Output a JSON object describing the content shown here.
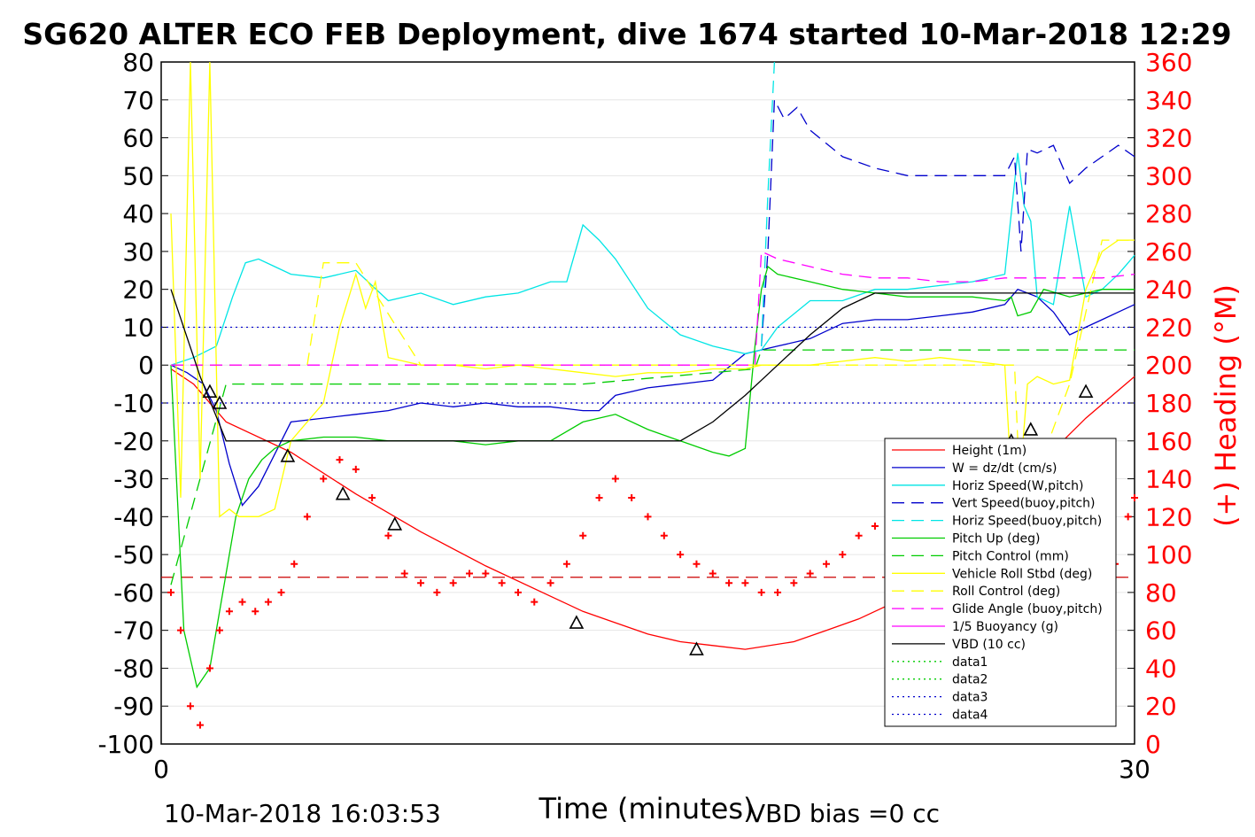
{
  "chart_data": {
    "type": "line",
    "title": "SG620 ALTER ECO FEB Deployment, dive 1674 started 10-Mar-2018 12:29",
    "xlabel": "Time (minutes)",
    "ylabel_right": "(+) Heading (°M)",
    "xlim": [
      0,
      30
    ],
    "ylim_left": [
      -100,
      80
    ],
    "ylim_right": [
      0,
      360
    ],
    "x_ticks": [
      "0",
      "30"
    ],
    "y_ticks_left": [
      "80",
      "70",
      "60",
      "50",
      "40",
      "30",
      "20",
      "10",
      "0",
      "-10",
      "-20",
      "-30",
      "-40",
      "-50",
      "-60",
      "-70",
      "-80",
      "-90",
      "-100"
    ],
    "y_ticks_right": [
      "360",
      "340",
      "320",
      "300",
      "280",
      "260",
      "240",
      "220",
      "200",
      "180",
      "160",
      "140",
      "120",
      "100",
      "80",
      "60",
      "40",
      "20",
      "0"
    ],
    "grid": true,
    "legend_position": "lower-right",
    "footer_left": "10-Mar-2018 16:03:53",
    "footer_right": "VBD bias =0 cc",
    "colors": {
      "height": "#ff0000",
      "w": "#0000cc",
      "horiz_w": "#00e5e5",
      "vert_buoy": "#0000cc",
      "horiz_buoy": "#00e5e5",
      "pitch": "#00cc00",
      "pitch_ctrl": "#00cc00",
      "roll": "#ffff00",
      "roll_ctrl": "#ffff00",
      "glide": "#ff00ff",
      "buoyancy": "#ff00ff",
      "vbd": "#000000",
      "heading": "#ff0000",
      "marker": "#000000"
    },
    "legend": [
      {
        "name": "Height (1m)",
        "color": "#ff0000",
        "dash": "solid"
      },
      {
        "name": "W = dz/dt (cm/s)",
        "color": "#0000cc",
        "dash": "solid"
      },
      {
        "name": "Horiz Speed(W,pitch)",
        "color": "#00e5e5",
        "dash": "solid"
      },
      {
        "name": "Vert Speed(buoy,pitch)",
        "color": "#0000cc",
        "dash": "dashed"
      },
      {
        "name": "Horiz Speed(buoy,pitch)",
        "color": "#00e5e5",
        "dash": "dashed"
      },
      {
        "name": "Pitch Up (deg)",
        "color": "#00cc00",
        "dash": "solid"
      },
      {
        "name": "Pitch Control (mm)",
        "color": "#00cc00",
        "dash": "dashed"
      },
      {
        "name": "Vehicle Roll Stbd (deg)",
        "color": "#ffff00",
        "dash": "solid"
      },
      {
        "name": "Roll Control (deg)",
        "color": "#ffff00",
        "dash": "dashed"
      },
      {
        "name": "Glide Angle (buoy,pitch)",
        "color": "#ff00ff",
        "dash": "dashed"
      },
      {
        "name": "1/5 Buoyancy (g)",
        "color": "#ff00ff",
        "dash": "solid"
      },
      {
        "name": "VBD (10 cc)",
        "color": "#000000",
        "dash": "solid"
      },
      {
        "name": "data1",
        "color": "#00cc00",
        "dash": "dotted"
      },
      {
        "name": "data2",
        "color": "#00cc00",
        "dash": "dotted"
      },
      {
        "name": "data3",
        "color": "#0000cc",
        "dash": "dotted"
      },
      {
        "name": "data4",
        "color": "#0000cc",
        "dash": "dotted"
      }
    ],
    "series": [
      {
        "key": "height",
        "axis": "left",
        "dash": "solid",
        "x": [
          0.3,
          1,
          2,
          4,
          6,
          8,
          10,
          12,
          13,
          14,
          15,
          16,
          17,
          18,
          19.5,
          20.5,
          21.5,
          22.5,
          23.5,
          24.5,
          25.5,
          26.5,
          27.2,
          28.5,
          30.0
        ],
        "y": [
          -1,
          -5,
          -15,
          -23,
          -34,
          -44,
          -53,
          -61,
          -65,
          -68,
          -71,
          -73,
          -74,
          -75,
          -73,
          -70,
          -67,
          -63,
          -57,
          -50,
          -43,
          -34,
          -25,
          -14,
          -3
        ]
      },
      {
        "key": "w",
        "axis": "left",
        "dash": "solid",
        "x": [
          0.3,
          0.8,
          1.3,
          1.7,
          2.1,
          2.5,
          3,
          4,
          5,
          6,
          7,
          8,
          9,
          10,
          11,
          12,
          13,
          13.5,
          14,
          15,
          16,
          17,
          18,
          19,
          20,
          21,
          22,
          23,
          24,
          25,
          26,
          26.4,
          27,
          27.5,
          28,
          28.5,
          29,
          29.5,
          30
        ],
        "y": [
          0,
          -2,
          -5,
          -12,
          -26,
          -37,
          -32,
          -15,
          -14,
          -13,
          -12,
          -10,
          -11,
          -10,
          -11,
          -11,
          -12,
          -12,
          -8,
          -6,
          -5,
          -4,
          3,
          5,
          7,
          11,
          12,
          12,
          13,
          14,
          16,
          20,
          18,
          14,
          8,
          10,
          12,
          14,
          16
        ]
      },
      {
        "key": "horiz_w",
        "axis": "left",
        "dash": "solid",
        "x": [
          0.3,
          1,
          1.7,
          2.2,
          2.6,
          3,
          3.5,
          4,
          5,
          6,
          7,
          8,
          9,
          10,
          11,
          12,
          12.5,
          13,
          13.5,
          14,
          15,
          16,
          17,
          18,
          18.5,
          19,
          20,
          21,
          22,
          23,
          24,
          25,
          26,
          26.4,
          26.6,
          26.8,
          27,
          27.5,
          28,
          28.5,
          29,
          29.5,
          30
        ],
        "y": [
          0,
          2,
          5,
          18,
          27,
          28,
          26,
          24,
          23,
          25,
          17,
          19,
          16,
          18,
          19,
          22,
          22,
          37,
          33,
          28,
          15,
          8,
          5,
          3,
          4,
          10,
          17,
          17,
          20,
          20,
          21,
          22,
          24,
          56,
          42,
          38,
          18,
          16,
          42,
          18,
          20,
          24,
          29
        ]
      },
      {
        "key": "vert_buoy",
        "axis": "left",
        "dash": "dashed",
        "x": [
          18.5,
          18.7,
          18.9,
          19.2,
          19.6,
          20,
          21,
          22,
          23,
          24,
          25,
          26,
          26.3,
          26.5,
          26.7,
          27,
          27.5,
          28,
          28.5,
          29,
          29.5,
          30
        ],
        "y": [
          5,
          30,
          70,
          65,
          68,
          62,
          55,
          52,
          50,
          50,
          50,
          50,
          55,
          30,
          57,
          56,
          58,
          48,
          52,
          55,
          58,
          55
        ]
      },
      {
        "key": "horiz_buoy",
        "axis": "left",
        "dash": "dashed",
        "x": [
          18.5,
          18.7,
          18.9
        ],
        "y": [
          5,
          45,
          80
        ]
      },
      {
        "key": "pitch",
        "axis": "left",
        "dash": "solid",
        "x": [
          0.3,
          0.7,
          1.1,
          1.5,
          1.9,
          2.3,
          2.7,
          3.1,
          3.5,
          4,
          5,
          6,
          7,
          8,
          9,
          10,
          11,
          12,
          13,
          14,
          15,
          16,
          17,
          17.5,
          18,
          18.3,
          18.5,
          18.7,
          19,
          20,
          21,
          22,
          23,
          24,
          25,
          26,
          26.2,
          26.4,
          26.8,
          27.2,
          27.6,
          28,
          28.5,
          29,
          29.5,
          30
        ],
        "y": [
          0,
          -70,
          -85,
          -80,
          -60,
          -40,
          -30,
          -25,
          -22,
          -20,
          -19,
          -19,
          -20,
          -20,
          -20,
          -21,
          -20,
          -20,
          -15,
          -13,
          -17,
          -20,
          -23,
          -24,
          -22,
          5,
          20,
          26,
          24,
          22,
          20,
          19,
          18,
          18,
          18,
          17,
          18,
          13,
          14,
          20,
          19,
          18,
          19,
          20,
          20,
          20
        ]
      },
      {
        "key": "pitch_ctrl",
        "axis": "left",
        "dash": "dashed",
        "x": [
          0.3,
          2,
          13,
          18.3,
          18.5,
          30
        ],
        "y": [
          -58,
          -5,
          -5,
          -1,
          4,
          4
        ]
      },
      {
        "key": "roll",
        "axis": "left",
        "dash": "solid",
        "x": [
          0.3,
          0.6,
          0.9,
          1.2,
          1.5,
          1.8,
          2.1,
          2.4,
          2.7,
          3,
          3.5,
          4,
          5,
          5.5,
          6,
          6.3,
          6.6,
          7,
          8,
          9,
          10,
          11,
          12,
          13,
          14,
          15,
          16,
          17,
          18,
          18.5,
          19,
          20,
          21,
          22,
          23,
          24,
          25,
          26,
          26.2,
          26.4,
          26.7,
          27,
          27.5,
          28,
          28.5,
          29,
          29.5,
          30
        ],
        "y": [
          40,
          -35,
          80,
          -30,
          80,
          -40,
          -38,
          -40,
          -40,
          -40,
          -38,
          -20,
          -10,
          10,
          24,
          15,
          22,
          2,
          0,
          0,
          -1,
          0,
          -1,
          -2,
          -3,
          -2,
          -2,
          -1,
          -1,
          0,
          0,
          0,
          1,
          2,
          1,
          2,
          1,
          0,
          -30,
          -38,
          -5,
          -3,
          -5,
          -4,
          20,
          30,
          33,
          33
        ]
      },
      {
        "key": "roll_ctrl",
        "axis": "left",
        "dash": "dashed",
        "x": [
          0.3,
          4.5,
          5,
          5.3,
          5.6,
          6,
          8,
          12,
          13,
          18.5,
          26.3,
          26.5,
          28,
          29,
          30
        ],
        "y": [
          0,
          0,
          27,
          27,
          27,
          27,
          0,
          0,
          0,
          0,
          0,
          -40,
          -5,
          33,
          33
        ]
      },
      {
        "key": "glide",
        "axis": "left",
        "dash": "dashed",
        "x": [
          0.3,
          18.3,
          18.5,
          19,
          20,
          21,
          22,
          23,
          24,
          25,
          26,
          27,
          28,
          29,
          30
        ],
        "y": [
          0,
          0,
          30,
          28,
          26,
          24,
          23,
          23,
          22,
          22,
          23,
          23,
          23,
          23,
          24
        ]
      },
      {
        "key": "vbd",
        "axis": "left",
        "dash": "solid",
        "x": [
          0.3,
          1.2,
          2,
          3,
          4,
          5,
          6,
          7,
          8,
          9,
          10,
          11,
          12,
          13,
          14,
          15,
          16,
          17,
          18,
          19,
          20,
          21,
          22,
          23,
          24,
          25,
          26,
          27,
          28,
          29,
          30
        ],
        "y": [
          20,
          -3,
          -20,
          -20,
          -20,
          -20,
          -20,
          -20,
          -20,
          -20,
          -20,
          -20,
          -20,
          -20,
          -20,
          -20,
          -20,
          -15,
          -8,
          0,
          8,
          15,
          19,
          19,
          19,
          19,
          19,
          19,
          19,
          19,
          19
        ]
      },
      {
        "key": "heading",
        "axis": "right",
        "dash": "markers",
        "x": [
          0.3,
          0.6,
          0.9,
          1.2,
          1.5,
          1.8,
          2.1,
          2.5,
          2.9,
          3.3,
          3.7,
          4.1,
          4.5,
          5,
          5.5,
          6,
          6.5,
          7,
          7.5,
          8,
          8.5,
          9,
          9.5,
          10,
          10.5,
          11,
          11.5,
          12,
          12.5,
          13,
          13.5,
          14,
          14.5,
          15,
          15.5,
          16,
          16.5,
          17,
          17.5,
          18,
          18.5,
          19,
          19.5,
          20,
          20.5,
          21,
          21.5,
          22,
          22.5,
          23,
          23.5,
          24,
          24.5,
          25,
          25.5,
          26,
          26.3,
          26.6,
          27,
          27.4,
          27.8,
          28.2,
          28.6,
          29,
          29.4,
          29.8,
          30
        ],
        "y": [
          80,
          60,
          20,
          10,
          40,
          60,
          70,
          75,
          70,
          75,
          80,
          95,
          120,
          140,
          150,
          145,
          130,
          110,
          90,
          85,
          80,
          85,
          90,
          90,
          85,
          80,
          75,
          85,
          95,
          110,
          130,
          140,
          130,
          120,
          110,
          100,
          95,
          90,
          85,
          85,
          80,
          80,
          85,
          90,
          95,
          100,
          110,
          115,
          120,
          125,
          115,
          105,
          110,
          75,
          55,
          50,
          45,
          40,
          25,
          20,
          60,
          60,
          70,
          80,
          95,
          120,
          130
        ]
      }
    ],
    "markers": {
      "x": [
        1.5,
        1.8,
        3.9,
        5.6,
        7.2,
        12.8,
        16.5,
        26.2,
        26.8,
        28.5
      ],
      "y": [
        -7,
        -10,
        -24,
        -34,
        -42,
        -68,
        -75,
        -20,
        -17,
        -7
      ]
    },
    "horizontal_lines": [
      {
        "y": 10,
        "color": "#0000cc",
        "dash": "dotted",
        "axis": "left"
      },
      {
        "y": -10,
        "color": "#0000cc",
        "dash": "dotted",
        "axis": "left"
      },
      {
        "y": 88,
        "color": "#cc0000",
        "dash": "dashed",
        "axis": "right"
      }
    ]
  }
}
